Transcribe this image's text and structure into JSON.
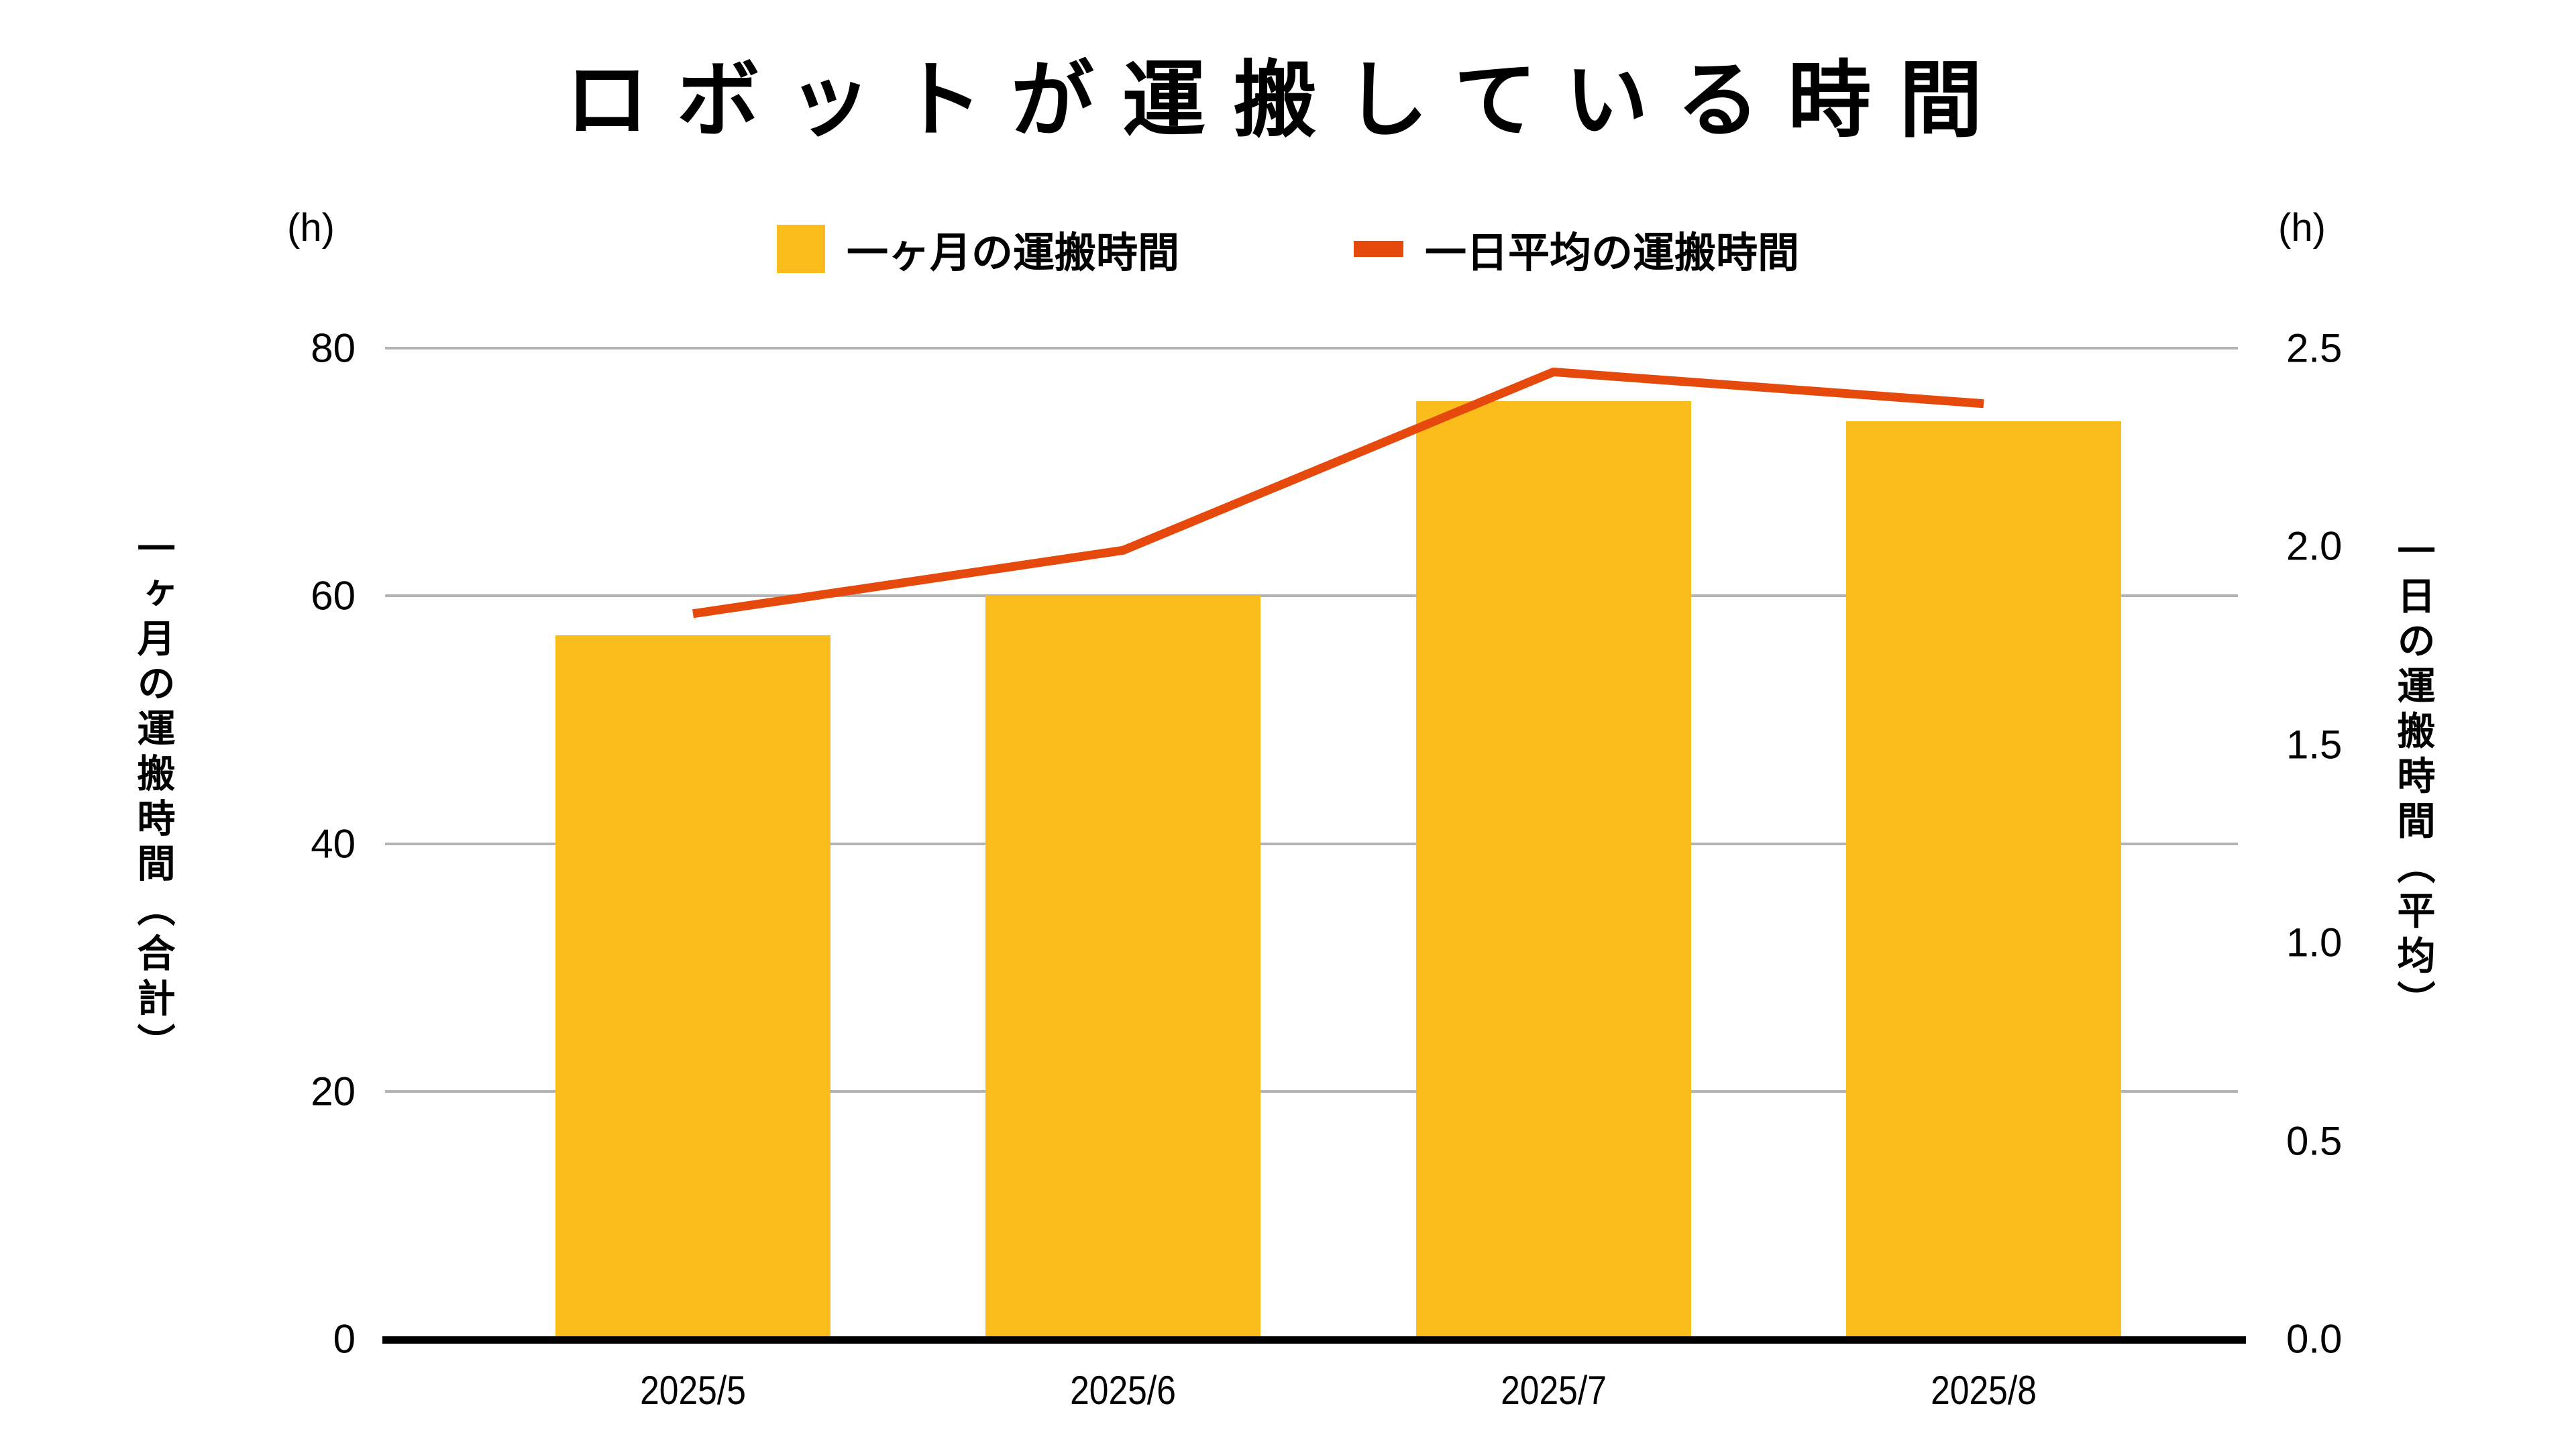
{
  "title": "ロボットが運搬している時間",
  "legend": [
    {
      "label": "一ヶ月の運搬時間",
      "color": "#FBBD1C",
      "marker": "square"
    },
    {
      "label": "一日平均の運搬時間",
      "color": "#E5490C",
      "marker": "dash"
    }
  ],
  "left_axis": {
    "unit": "(h)",
    "title": "一ヶ月の運搬時間（合計）",
    "ticks": [
      0,
      20,
      40,
      60,
      80
    ],
    "tick_labels": [
      "0",
      "20",
      "40",
      "60",
      "80"
    ],
    "max": 80
  },
  "right_axis": {
    "unit": "(h)",
    "title": "一日の運搬時間（平均）",
    "ticks": [
      0.0,
      0.5,
      1.0,
      1.5,
      2.0,
      2.5
    ],
    "tick_labels": [
      "0.0",
      "0.5",
      "1.0",
      "1.5",
      "2.0",
      "2.5"
    ],
    "max": 2.5
  },
  "chart_data": {
    "type": "bar",
    "subtype": "bar+line combo, dual y-axes",
    "title": "ロボットが運搬している時間",
    "categories": [
      "2025/5",
      "2025/6",
      "2025/7",
      "2025/8"
    ],
    "series": [
      {
        "name": "一ヶ月の運搬時間",
        "type": "bar",
        "axis": "left",
        "color": "#FBBD1C",
        "values": [
          56.8,
          60.0,
          75.7,
          74.1
        ]
      },
      {
        "name": "一日平均の運搬時間",
        "type": "line",
        "axis": "right",
        "color": "#E5490C",
        "values": [
          1.83,
          1.99,
          2.44,
          2.36
        ]
      }
    ],
    "xlabel": "",
    "ylabel_left": "一ヶ月の運搬時間（合計）",
    "ylabel_right": "一日の運搬時間（平均）",
    "left_ylim": [
      0,
      80
    ],
    "right_ylim": [
      0,
      2.5
    ],
    "grid": true,
    "gridline_values_left": [
      20,
      40,
      60,
      80
    ],
    "legend_position": "top"
  },
  "colors": {
    "background": "#FFFFFF",
    "bar": "#FBBD1C",
    "line": "#E5490C",
    "gridline": "#B3B3B3",
    "axis": "#000000",
    "text": "#000000"
  }
}
